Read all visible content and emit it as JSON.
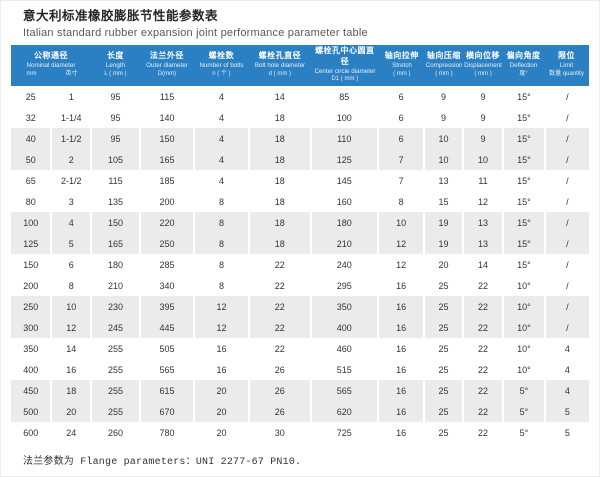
{
  "title": {
    "cn": "意大利标准橡胶膨胀节性能参数表",
    "en": "Italian standard rubber expansion joint performance parameter table"
  },
  "table": {
    "header": [
      {
        "cn": "公称通径",
        "en": "Nominal diameter",
        "units": [
          "mm",
          "英寸"
        ],
        "span": 2
      },
      {
        "cn": "长度",
        "en": "Length",
        "unit": "L ( mm )"
      },
      {
        "cn": "法兰外径",
        "en": "Outer diameter",
        "unit": "D(mm)"
      },
      {
        "cn": "螺栓数",
        "en": "Number of bolts",
        "unit": "n ( 个 )"
      },
      {
        "cn": "螺栓孔直径",
        "en": "Bolt hole diameter",
        "unit": "d ( mm )"
      },
      {
        "cn": "螺栓孔中心圆直径",
        "en": "Center circle diameter",
        "unit": "D1 ( mm )"
      },
      {
        "cn": "轴向拉伸",
        "en": "Stretch",
        "unit": "( mm )"
      },
      {
        "cn": "轴向压缩",
        "en": "Compression",
        "unit": "( mm )"
      },
      {
        "cn": "横向位移",
        "en": "Displacement",
        "unit": "( mm )"
      },
      {
        "cn": "偏向角度",
        "en": "Deflection",
        "unit": "度°"
      },
      {
        "cn": "限位",
        "en": "Limit",
        "unit": "数量 quantity"
      }
    ],
    "rows": [
      [
        "25",
        "1",
        "95",
        "115",
        "4",
        "14",
        "85",
        "6",
        "9",
        "9",
        "15°",
        "/"
      ],
      [
        "32",
        "1-1/4",
        "95",
        "140",
        "4",
        "18",
        "100",
        "6",
        "9",
        "9",
        "15°",
        "/"
      ],
      [
        "40",
        "1-1/2",
        "95",
        "150",
        "4",
        "18",
        "110",
        "6",
        "10",
        "9",
        "15°",
        "/"
      ],
      [
        "50",
        "2",
        "105",
        "165",
        "4",
        "18",
        "125",
        "7",
        "10",
        "10",
        "15°",
        "/"
      ],
      [
        "65",
        "2-1/2",
        "115",
        "185",
        "4",
        "18",
        "145",
        "7",
        "13",
        "11",
        "15°",
        "/"
      ],
      [
        "80",
        "3",
        "135",
        "200",
        "8",
        "18",
        "160",
        "8",
        "15",
        "12",
        "15°",
        "/"
      ],
      [
        "100",
        "4",
        "150",
        "220",
        "8",
        "18",
        "180",
        "10",
        "19",
        "13",
        "15°",
        "/"
      ],
      [
        "125",
        "5",
        "165",
        "250",
        "8",
        "18",
        "210",
        "12",
        "19",
        "13",
        "15°",
        "/"
      ],
      [
        "150",
        "6",
        "180",
        "285",
        "8",
        "22",
        "240",
        "12",
        "20",
        "14",
        "15°",
        "/"
      ],
      [
        "200",
        "8",
        "210",
        "340",
        "8",
        "22",
        "295",
        "16",
        "25",
        "22",
        "10°",
        "/"
      ],
      [
        "250",
        "10",
        "230",
        "395",
        "12",
        "22",
        "350",
        "16",
        "25",
        "22",
        "10°",
        "/"
      ],
      [
        "300",
        "12",
        "245",
        "445",
        "12",
        "22",
        "400",
        "16",
        "25",
        "22",
        "10°",
        "/"
      ],
      [
        "350",
        "14",
        "255",
        "505",
        "16",
        "22",
        "460",
        "16",
        "25",
        "22",
        "10°",
        "4"
      ],
      [
        "400",
        "16",
        "255",
        "565",
        "16",
        "26",
        "515",
        "16",
        "25",
        "22",
        "10°",
        "4"
      ],
      [
        "450",
        "18",
        "255",
        "615",
        "20",
        "26",
        "565",
        "16",
        "25",
        "22",
        "5°",
        "4"
      ],
      [
        "500",
        "20",
        "255",
        "670",
        "20",
        "26",
        "620",
        "16",
        "25",
        "22",
        "5°",
        "5"
      ],
      [
        "600",
        "24",
        "260",
        "780",
        "20",
        "30",
        "725",
        "16",
        "25",
        "22",
        "5°",
        "5"
      ]
    ]
  },
  "footer": "法兰参数为 Flange parameters：UNI 2277-67 PN10.",
  "colors": {
    "header_bg": "#2b80c4",
    "stripe": "#ebebeb"
  }
}
